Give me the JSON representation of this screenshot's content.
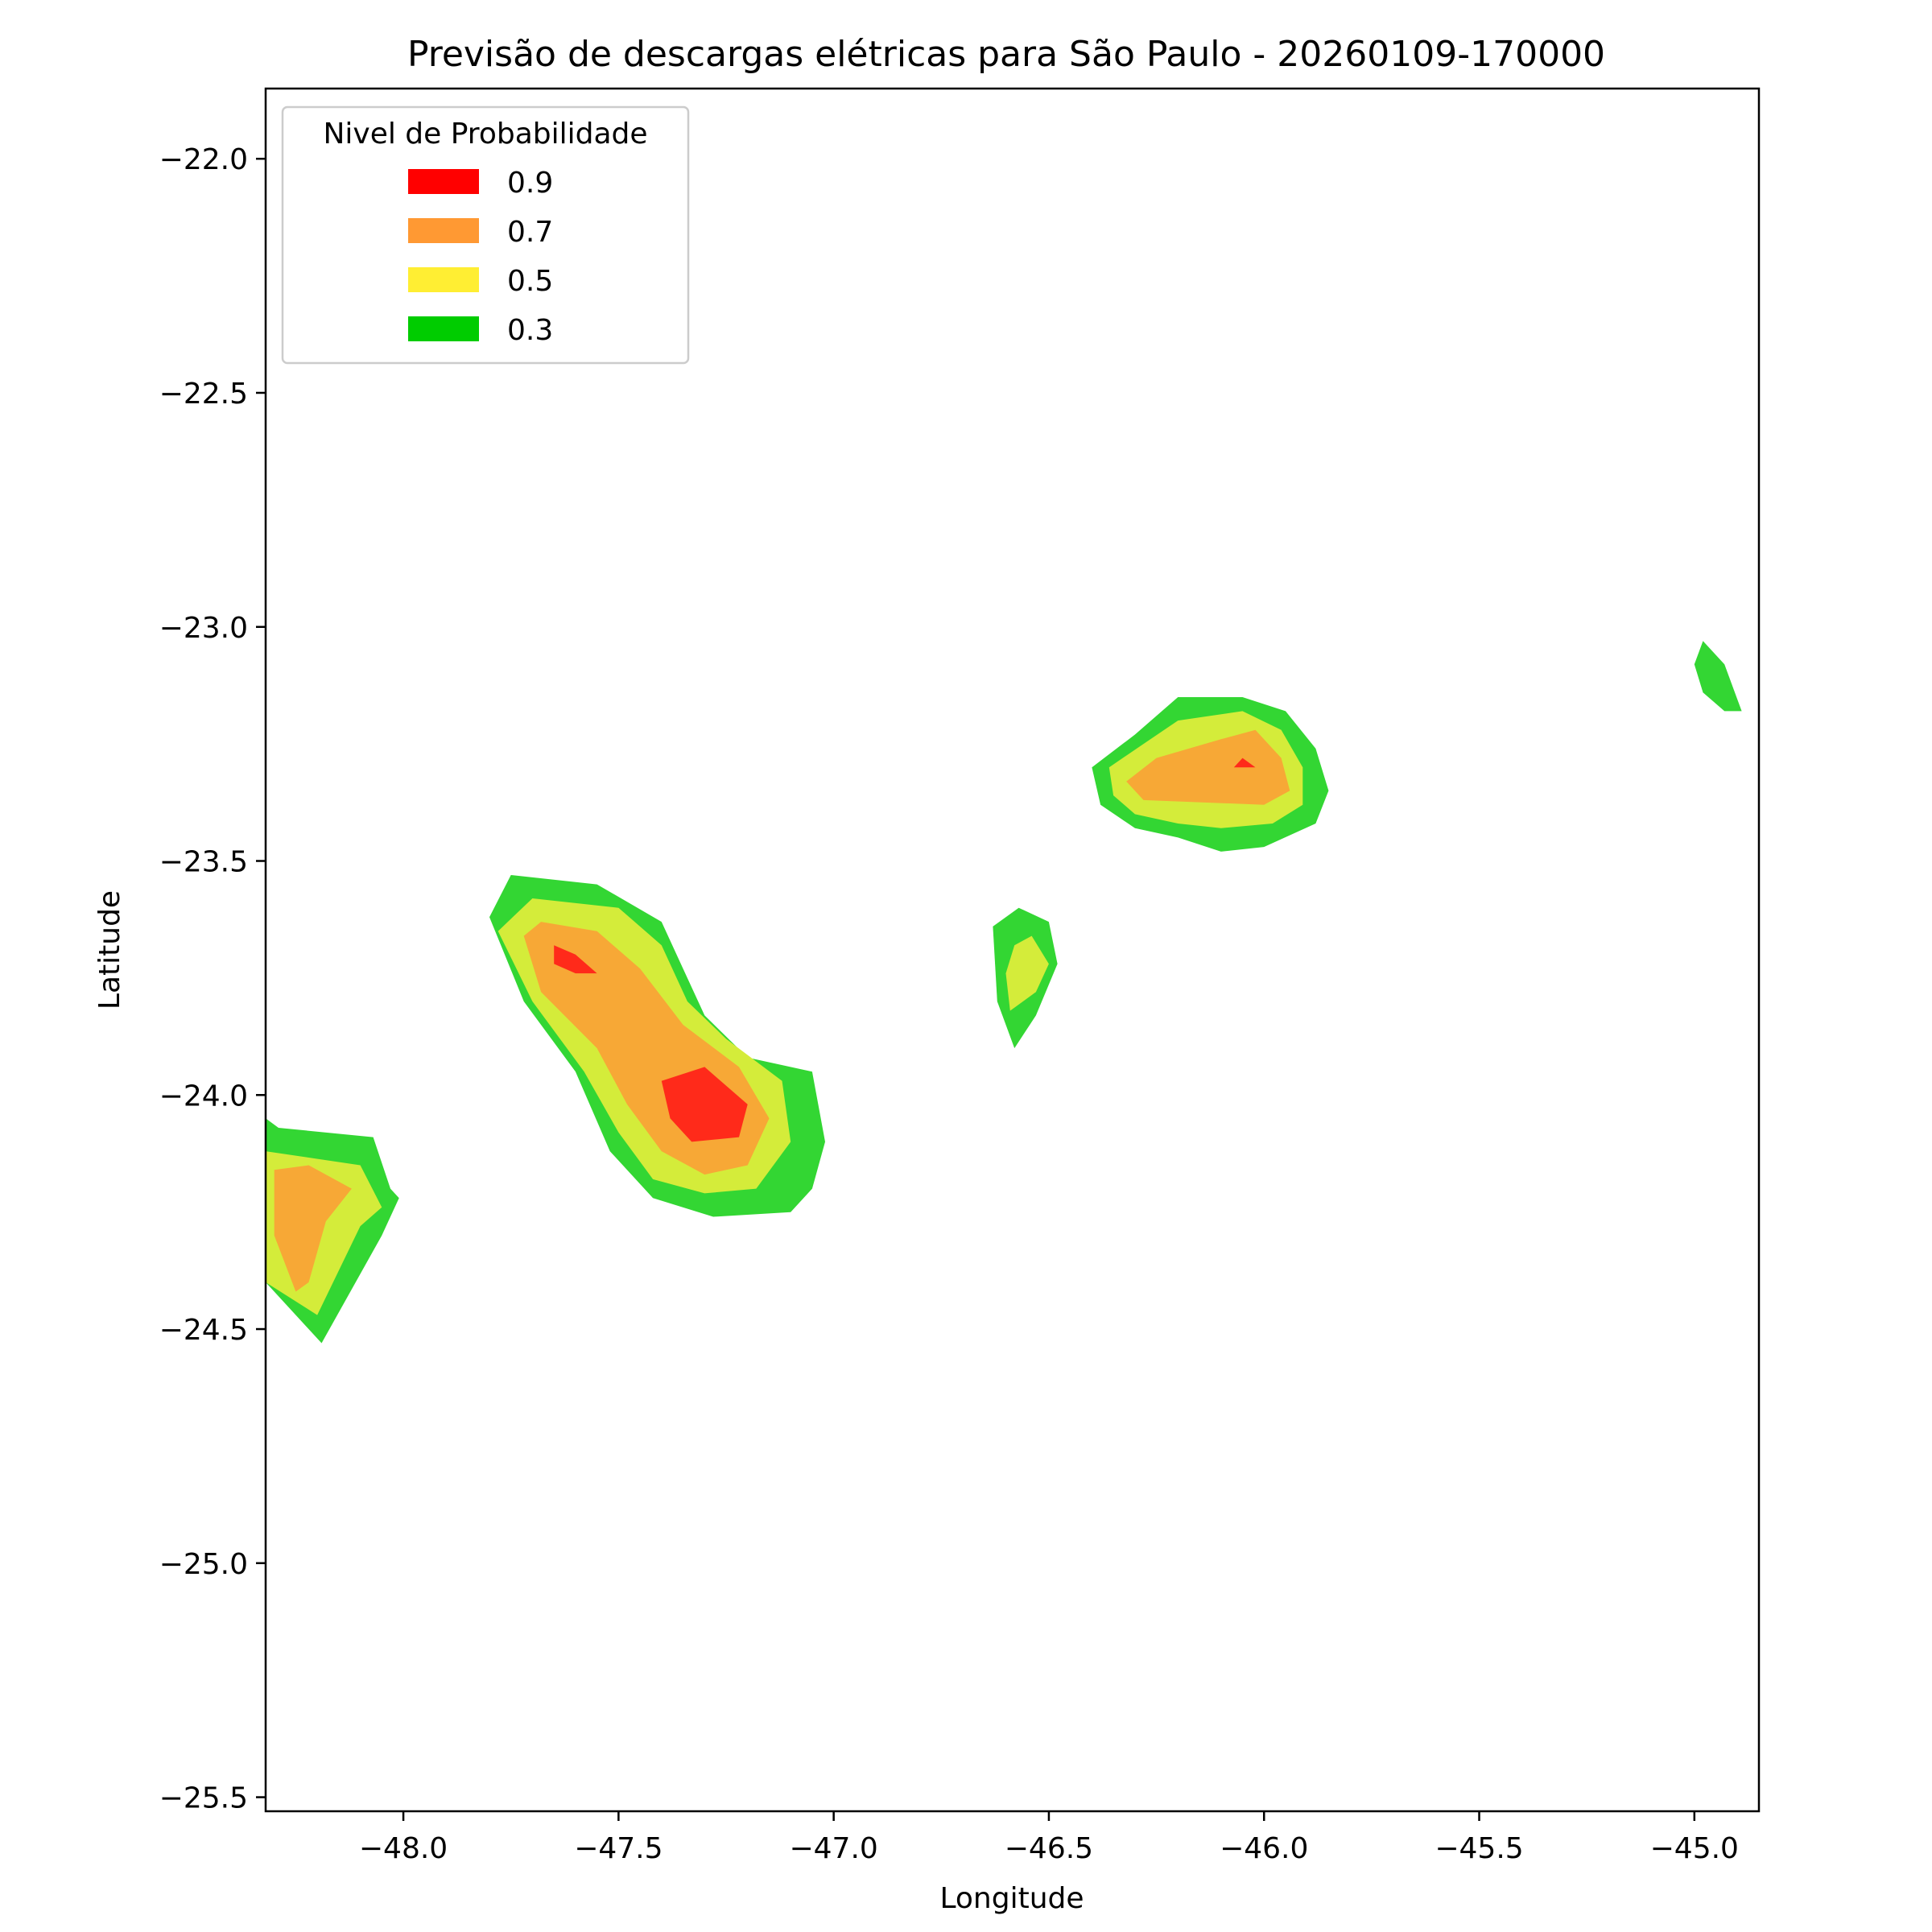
{
  "chart_data": {
    "type": "contour",
    "title": "Previsão de descargas elétricas para São Paulo - 20260109-170000",
    "xlabel": "Longitude",
    "ylabel": "Latitude",
    "xlim": [
      -48.32,
      -44.85
    ],
    "ylim": [
      -25.53,
      -21.85
    ],
    "xticks": [
      -48.0,
      -47.5,
      -47.0,
      -46.5,
      -46.0,
      -45.5,
      -45.0
    ],
    "xtick_labels": [
      "−48.0",
      "−47.5",
      "−47.0",
      "−46.5",
      "−46.0",
      "−45.5",
      "−45.0"
    ],
    "yticks": [
      -22.0,
      -22.5,
      -23.0,
      -23.5,
      -24.0,
      -24.5,
      -25.0,
      -25.5
    ],
    "ytick_labels": [
      "−22.0",
      "−22.5",
      "−23.0",
      "−23.5",
      "−24.0",
      "−24.5",
      "−25.0",
      "−25.5"
    ],
    "grid": false,
    "legend": {
      "title": "Nivel de Probabilidade",
      "placement": "upper-left",
      "entries": [
        {
          "label": "0.9",
          "color": "#ff0000"
        },
        {
          "label": "0.7",
          "color": "#ff9933"
        },
        {
          "label": "0.5",
          "color": "#ffee33"
        },
        {
          "label": "0.3",
          "color": "#00cc00"
        }
      ]
    },
    "fill_colors": {
      "0.3": "#33d633",
      "0.5": "#d4ec3a",
      "0.7": "#f7a836",
      "0.9": "#ff2a1a"
    },
    "regions": [
      {
        "name": "cell-west-edge",
        "level": "0.3",
        "points": [
          [
            -48.32,
            -24.05
          ],
          [
            -48.29,
            -24.07
          ],
          [
            -48.07,
            -24.09
          ],
          [
            -48.03,
            -24.2
          ],
          [
            -48.01,
            -24.22
          ],
          [
            -48.05,
            -24.3
          ],
          [
            -48.19,
            -24.53
          ],
          [
            -48.32,
            -24.4
          ]
        ]
      },
      {
        "name": "cell-west-edge",
        "level": "0.5",
        "points": [
          [
            -48.32,
            -24.12
          ],
          [
            -48.1,
            -24.15
          ],
          [
            -48.05,
            -24.24
          ],
          [
            -48.1,
            -24.28
          ],
          [
            -48.2,
            -24.47
          ],
          [
            -48.32,
            -24.4
          ]
        ]
      },
      {
        "name": "cell-west-edge",
        "level": "0.7",
        "points": [
          [
            -48.3,
            -24.16
          ],
          [
            -48.22,
            -24.15
          ],
          [
            -48.12,
            -24.2
          ],
          [
            -48.18,
            -24.27
          ],
          [
            -48.22,
            -24.4
          ],
          [
            -48.25,
            -24.42
          ],
          [
            -48.3,
            -24.3
          ]
        ]
      },
      {
        "name": "cell-southwest",
        "level": "0.3",
        "points": [
          [
            -47.8,
            -23.62
          ],
          [
            -47.75,
            -23.53
          ],
          [
            -47.55,
            -23.55
          ],
          [
            -47.4,
            -23.63
          ],
          [
            -47.35,
            -23.73
          ],
          [
            -47.3,
            -23.83
          ],
          [
            -47.2,
            -23.92
          ],
          [
            -47.05,
            -23.95
          ],
          [
            -47.02,
            -24.1
          ],
          [
            -47.05,
            -24.2
          ],
          [
            -47.1,
            -24.25
          ],
          [
            -47.28,
            -24.26
          ],
          [
            -47.42,
            -24.22
          ],
          [
            -47.52,
            -24.12
          ],
          [
            -47.6,
            -23.95
          ],
          [
            -47.72,
            -23.8
          ]
        ]
      },
      {
        "name": "cell-southwest",
        "level": "0.5",
        "points": [
          [
            -47.78,
            -23.65
          ],
          [
            -47.7,
            -23.58
          ],
          [
            -47.5,
            -23.6
          ],
          [
            -47.4,
            -23.68
          ],
          [
            -47.34,
            -23.8
          ],
          [
            -47.25,
            -23.88
          ],
          [
            -47.12,
            -23.97
          ],
          [
            -47.1,
            -24.1
          ],
          [
            -47.18,
            -24.2
          ],
          [
            -47.3,
            -24.21
          ],
          [
            -47.42,
            -24.18
          ],
          [
            -47.5,
            -24.08
          ],
          [
            -47.58,
            -23.95
          ],
          [
            -47.7,
            -23.8
          ]
        ]
      },
      {
        "name": "cell-southwest",
        "level": "0.7",
        "points": [
          [
            -47.72,
            -23.66
          ],
          [
            -47.68,
            -23.63
          ],
          [
            -47.55,
            -23.65
          ],
          [
            -47.45,
            -23.73
          ],
          [
            -47.35,
            -23.85
          ],
          [
            -47.22,
            -23.94
          ],
          [
            -47.15,
            -24.05
          ],
          [
            -47.2,
            -24.15
          ],
          [
            -47.3,
            -24.17
          ],
          [
            -47.4,
            -24.12
          ],
          [
            -47.48,
            -24.02
          ],
          [
            -47.55,
            -23.9
          ],
          [
            -47.68,
            -23.78
          ]
        ]
      },
      {
        "name": "cell-southwest",
        "level": "0.9",
        "points": [
          [
            -47.65,
            -23.68
          ],
          [
            -47.6,
            -23.7
          ],
          [
            -47.55,
            -23.74
          ],
          [
            -47.6,
            -23.74
          ],
          [
            -47.65,
            -23.72
          ]
        ]
      },
      {
        "name": "cell-southwest",
        "level": "0.9",
        "points": [
          [
            -47.4,
            -23.97
          ],
          [
            -47.3,
            -23.94
          ],
          [
            -47.2,
            -24.02
          ],
          [
            -47.22,
            -24.09
          ],
          [
            -47.33,
            -24.1
          ],
          [
            -47.38,
            -24.05
          ]
        ]
      },
      {
        "name": "cell-center",
        "level": "0.3",
        "points": [
          [
            -46.63,
            -23.64
          ],
          [
            -46.57,
            -23.6
          ],
          [
            -46.5,
            -23.63
          ],
          [
            -46.48,
            -23.72
          ],
          [
            -46.53,
            -23.83
          ],
          [
            -46.58,
            -23.9
          ],
          [
            -46.62,
            -23.8
          ]
        ]
      },
      {
        "name": "cell-center",
        "level": "0.5",
        "points": [
          [
            -46.58,
            -23.68
          ],
          [
            -46.54,
            -23.66
          ],
          [
            -46.5,
            -23.72
          ],
          [
            -46.53,
            -23.78
          ],
          [
            -46.59,
            -23.82
          ],
          [
            -46.6,
            -23.74
          ]
        ]
      },
      {
        "name": "cell-northeast",
        "level": "0.3",
        "points": [
          [
            -46.4,
            -23.3
          ],
          [
            -46.3,
            -23.23
          ],
          [
            -46.2,
            -23.15
          ],
          [
            -46.05,
            -23.15
          ],
          [
            -45.95,
            -23.18
          ],
          [
            -45.88,
            -23.26
          ],
          [
            -45.85,
            -23.35
          ],
          [
            -45.88,
            -23.42
          ],
          [
            -46.0,
            -23.47
          ],
          [
            -46.1,
            -23.48
          ],
          [
            -46.2,
            -23.45
          ],
          [
            -46.3,
            -23.43
          ],
          [
            -46.38,
            -23.38
          ]
        ]
      },
      {
        "name": "cell-northeast",
        "level": "0.5",
        "points": [
          [
            -46.36,
            -23.3
          ],
          [
            -46.28,
            -23.25
          ],
          [
            -46.2,
            -23.2
          ],
          [
            -46.05,
            -23.18
          ],
          [
            -45.96,
            -23.22
          ],
          [
            -45.91,
            -23.3
          ],
          [
            -45.91,
            -23.38
          ],
          [
            -45.98,
            -23.42
          ],
          [
            -46.1,
            -23.43
          ],
          [
            -46.2,
            -23.42
          ],
          [
            -46.3,
            -23.4
          ],
          [
            -46.35,
            -23.36
          ]
        ]
      },
      {
        "name": "cell-northeast",
        "level": "0.7",
        "points": [
          [
            -46.32,
            -23.33
          ],
          [
            -46.25,
            -23.28
          ],
          [
            -46.1,
            -23.24
          ],
          [
            -46.02,
            -23.22
          ],
          [
            -45.96,
            -23.28
          ],
          [
            -45.94,
            -23.35
          ],
          [
            -46.0,
            -23.38
          ],
          [
            -46.28,
            -23.37
          ]
        ]
      },
      {
        "name": "cell-northeast",
        "level": "0.9",
        "points": [
          [
            -46.07,
            -23.3
          ],
          [
            -46.05,
            -23.28
          ],
          [
            -46.02,
            -23.3
          ]
        ]
      },
      {
        "name": "cell-east-edge",
        "level": "0.3",
        "points": [
          [
            -44.98,
            -23.03
          ],
          [
            -44.93,
            -23.08
          ],
          [
            -44.89,
            -23.18
          ],
          [
            -44.93,
            -23.18
          ],
          [
            -44.98,
            -23.14
          ],
          [
            -45.0,
            -23.08
          ]
        ]
      }
    ]
  }
}
